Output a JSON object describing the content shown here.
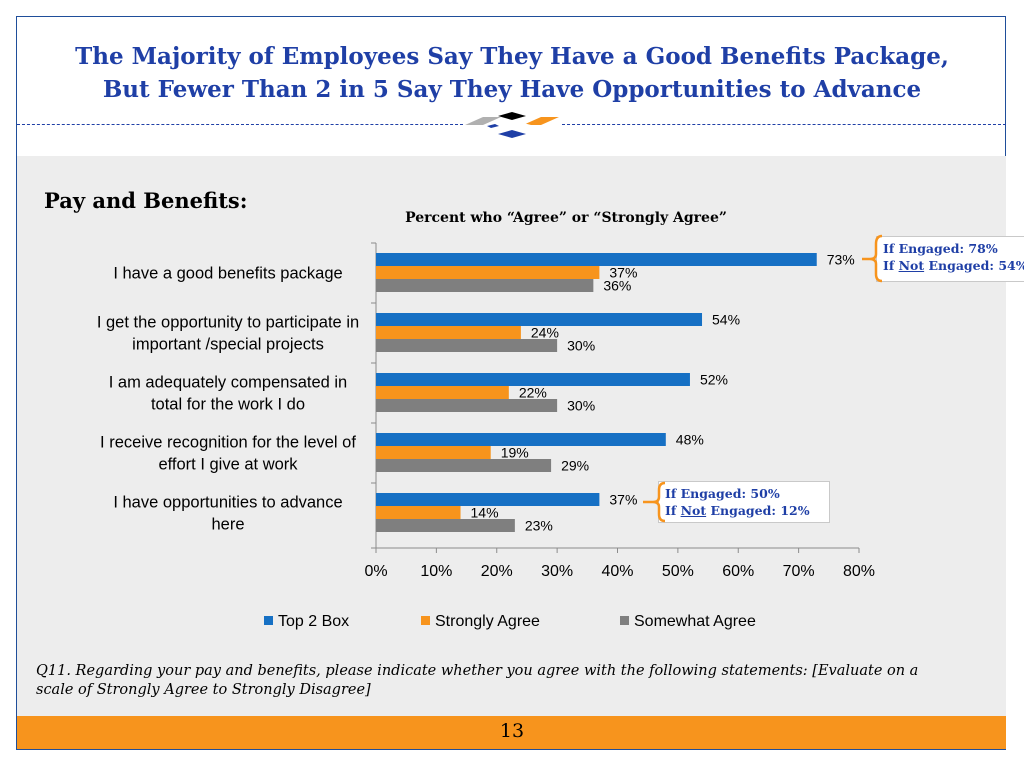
{
  "slide": {
    "title_line1": "The Majority of Employees Say They Have a Good Benefits Package,",
    "title_line2": "But Fewer Than 2 in 5  Say They Have Opportunities to Advance",
    "section_label": "Pay and Benefits:",
    "footnote": "Q11. Regarding your pay and benefits, please indicate whether you agree with the following statements:  [Evaluate on a scale of Strongly Agree to Strongly Disagree]",
    "page_number": "13"
  },
  "callouts": {
    "top": {
      "line1": "If Engaged: 78%",
      "line2_prefix": "If ",
      "line2_underlined": "Not",
      "line2_suffix": " Engaged: 54%"
    },
    "bottom": {
      "line1": "If Engaged: 50%",
      "line2_prefix": "If ",
      "line2_underlined": "Not",
      "line2_suffix": " Engaged: 12%"
    }
  },
  "colors": {
    "top2": "#1670c4",
    "strongly": "#f7941d",
    "somewhat": "#7f7f7f",
    "accent_blue": "#1f3fa6",
    "accent_orange": "#f7941d"
  },
  "chart_data": {
    "type": "bar",
    "orientation": "horizontal",
    "title": "Percent who “Agree” or “Strongly Agree”",
    "categories": [
      [
        "I have a good benefits package"
      ],
      [
        "I get the opportunity to participate in",
        "important /special projects"
      ],
      [
        "I am adequately compensated in",
        "total for the work I do"
      ],
      [
        "I receive recognition for the level of",
        "effort I give at work"
      ],
      [
        "I have opportunities to advance",
        "here"
      ]
    ],
    "series": [
      {
        "name": "Top 2 Box",
        "color": "#1670c4",
        "values": [
          73,
          54,
          52,
          48,
          37
        ],
        "labels": [
          "73%",
          "54%",
          "52%",
          "48%",
          "37%"
        ]
      },
      {
        "name": "Strongly Agree",
        "color": "#f7941d",
        "values": [
          37,
          24,
          22,
          19,
          14
        ],
        "labels": [
          "37%",
          "24%",
          "22%",
          "19%",
          "14%"
        ]
      },
      {
        "name": "Somewhat Agree",
        "color": "#7f7f7f",
        "values": [
          36,
          30,
          30,
          29,
          23
        ],
        "labels": [
          "36%",
          "30%",
          "30%",
          "29%",
          "23%"
        ]
      }
    ],
    "xlim": [
      0,
      80
    ],
    "xticks": [
      "0%",
      "10%",
      "20%",
      "30%",
      "40%",
      "50%",
      "60%",
      "70%",
      "80%"
    ],
    "legend_position": "bottom",
    "grid": false
  }
}
